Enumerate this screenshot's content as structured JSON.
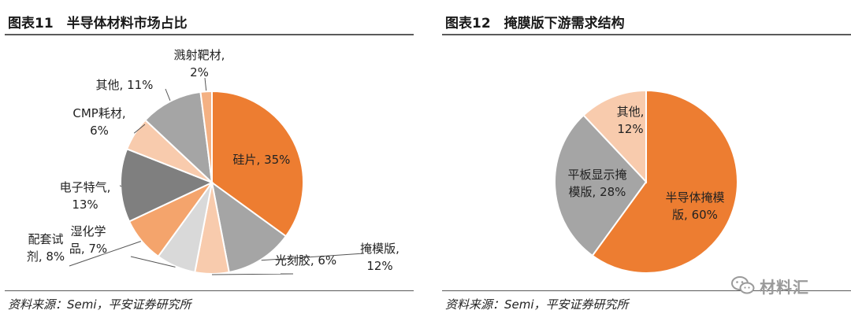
{
  "left_panel": {
    "title": "图表11　半导体材料市场占比",
    "source": "资料来源：Semi，平安证券研究所"
  },
  "right_panel": {
    "title": "图表12　掩膜版下游需求结构",
    "source": "资料来源：Semi，平安证券研究所"
  },
  "watermark": {
    "text": "材料汇",
    "icon": "wechat-icon"
  },
  "chart_data": [
    {
      "type": "pie",
      "title": "图表11　半导体材料市场占比",
      "slices": [
        {
          "label": "硅片",
          "value": 35,
          "color": "#ED7D31",
          "label_lines": [
            "硅片, 35%"
          ]
        },
        {
          "label": "掩模版",
          "value": 12,
          "color": "#A5A5A5",
          "label_lines": [
            "掩模版,",
            "12%"
          ]
        },
        {
          "label": "光刻胶",
          "value": 6,
          "color": "#F8CBAD",
          "label_lines": [
            "光刻胶, 6%"
          ]
        },
        {
          "label": "湿化学品",
          "value": 7,
          "color": "#D9D9D9",
          "label_lines": [
            "湿化学",
            "品, 7%"
          ]
        },
        {
          "label": "配套试剂",
          "value": 8,
          "color": "#F4A46C",
          "label_lines": [
            "配套试",
            "剂, 8%"
          ]
        },
        {
          "label": "电子特气",
          "value": 13,
          "color": "#7F7F7F",
          "label_lines": [
            "电子特气,",
            "13%"
          ]
        },
        {
          "label": "CMP耗材",
          "value": 6,
          "color": "#F8CBAD",
          "label_lines": [
            "CMP耗材,",
            "6%"
          ]
        },
        {
          "label": "其他",
          "value": 11,
          "color": "#A5A5A5",
          "label_lines": [
            "其他, 11%"
          ]
        },
        {
          "label": "溅射靶材",
          "value": 2,
          "color": "#F4B183",
          "label_lines": [
            "溅射靶材,",
            "2%"
          ]
        }
      ]
    },
    {
      "type": "pie",
      "title": "图表12　掩膜版下游需求结构",
      "slices": [
        {
          "label": "半导体掩模版",
          "value": 60,
          "color": "#ED7D31",
          "label_lines": [
            "半导体掩模",
            "版, 60%"
          ]
        },
        {
          "label": "平板显示掩模版",
          "value": 28,
          "color": "#A5A5A5",
          "label_lines": [
            "平板显示掩",
            "模版, 28%"
          ]
        },
        {
          "label": "其他",
          "value": 12,
          "color": "#F8CBAD",
          "label_lines": [
            "其他,",
            "12%"
          ]
        }
      ]
    }
  ]
}
